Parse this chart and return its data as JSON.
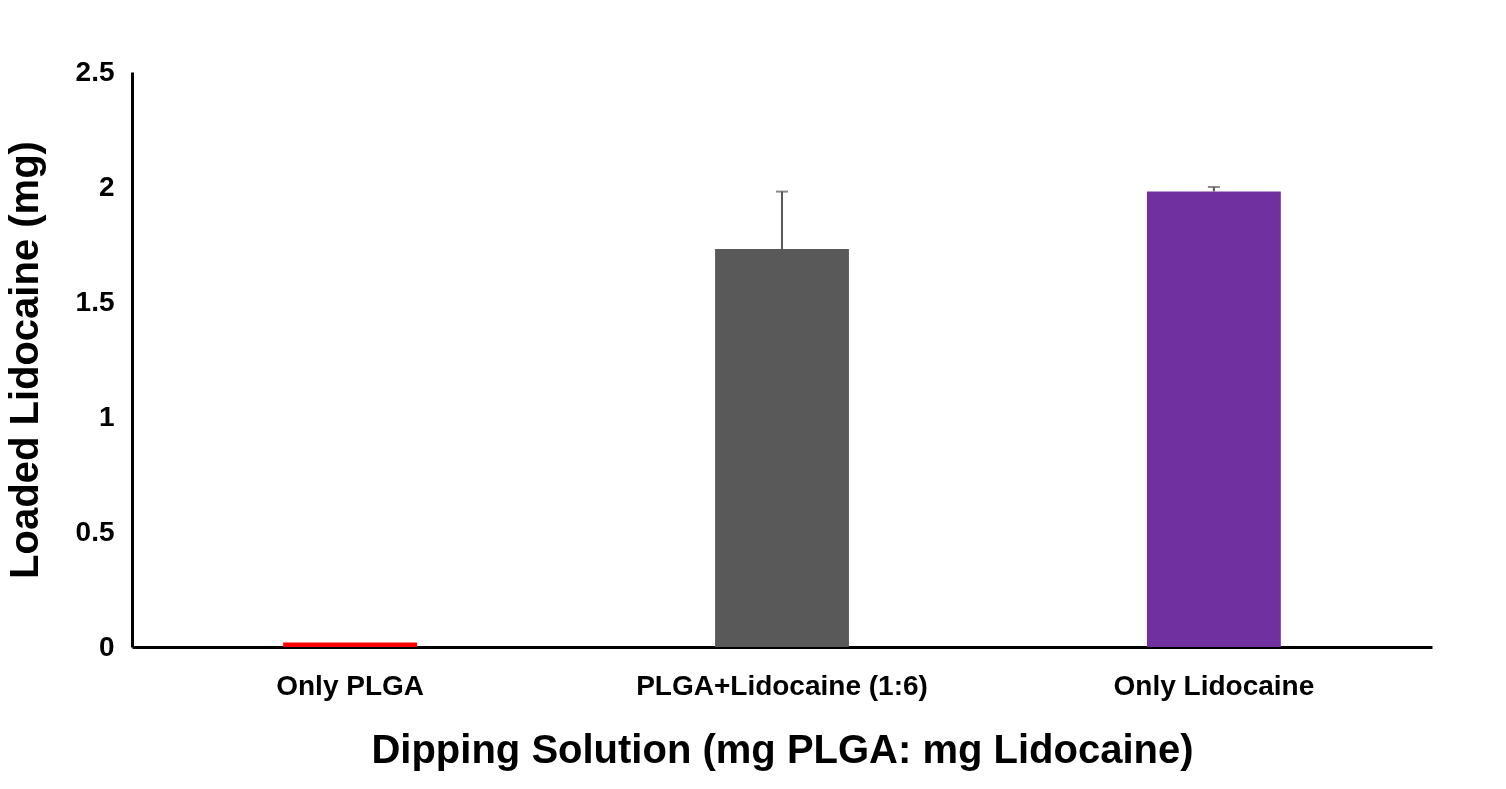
{
  "chart_data": {
    "type": "bar",
    "xlabel": "Dipping Solution (mg PLGA: mg Lidocaine)",
    "ylabel": "Loaded Lidocaine (mg)",
    "categories": [
      "Only PLGA",
      "PLGA+Lidocaine (1:6)",
      "Only Lidocaine"
    ],
    "values": [
      0.02,
      1.73,
      1.98
    ],
    "colors": [
      "#ff0000",
      "#595959",
      "#7030a0"
    ],
    "errors": [
      null,
      0.25,
      0.02
    ],
    "ylim": [
      0,
      2.5
    ],
    "yticks": [
      0,
      0.5,
      1,
      1.5,
      2,
      2.5
    ],
    "grid": false
  }
}
